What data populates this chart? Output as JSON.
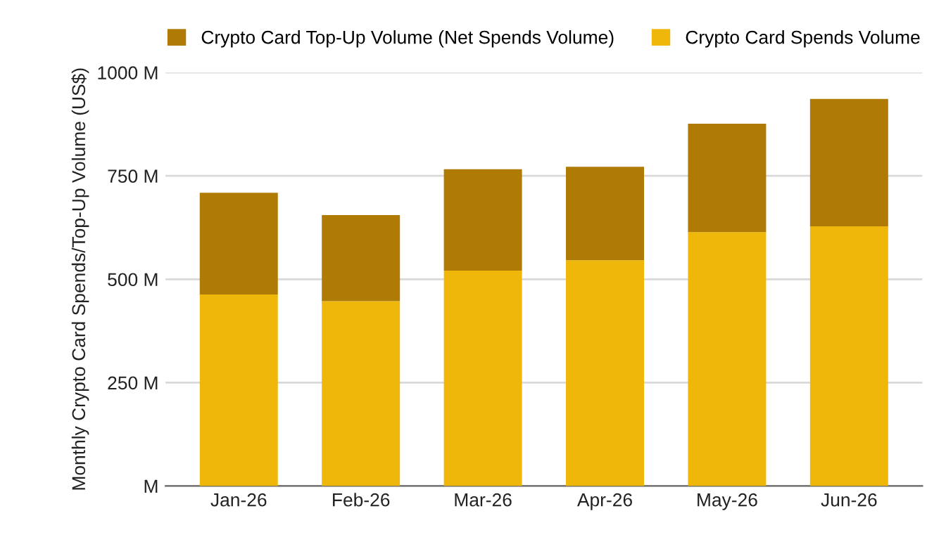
{
  "chart_data": {
    "type": "bar",
    "stacked": true,
    "ylabel": "Monthly Crypto Card Spends/Top-Up Volume (US$)",
    "categories": [
      "Jan-26",
      "Feb-26",
      "Mar-26",
      "Apr-26",
      "May-26",
      "Jun-26"
    ],
    "series": [
      {
        "name": "Crypto Card Spends Volume",
        "color": "#f0b70b",
        "values": [
          463,
          447,
          521,
          546,
          614,
          628
        ]
      },
      {
        "name": "Crypto Card Top-Up Volume (Net Spends Volume)",
        "color": "#b07b05",
        "values": [
          246,
          208,
          245,
          226,
          262,
          308
        ]
      }
    ],
    "ylim": [
      0,
      1000
    ],
    "yticks": [
      {
        "value": 0,
        "label": "M"
      },
      {
        "value": 250,
        "label": "250 M"
      },
      {
        "value": 500,
        "label": "500 M"
      },
      {
        "value": 750,
        "label": "750 M"
      },
      {
        "value": 1000,
        "label": "1000 M"
      }
    ],
    "grid": "y",
    "legend": "top"
  }
}
